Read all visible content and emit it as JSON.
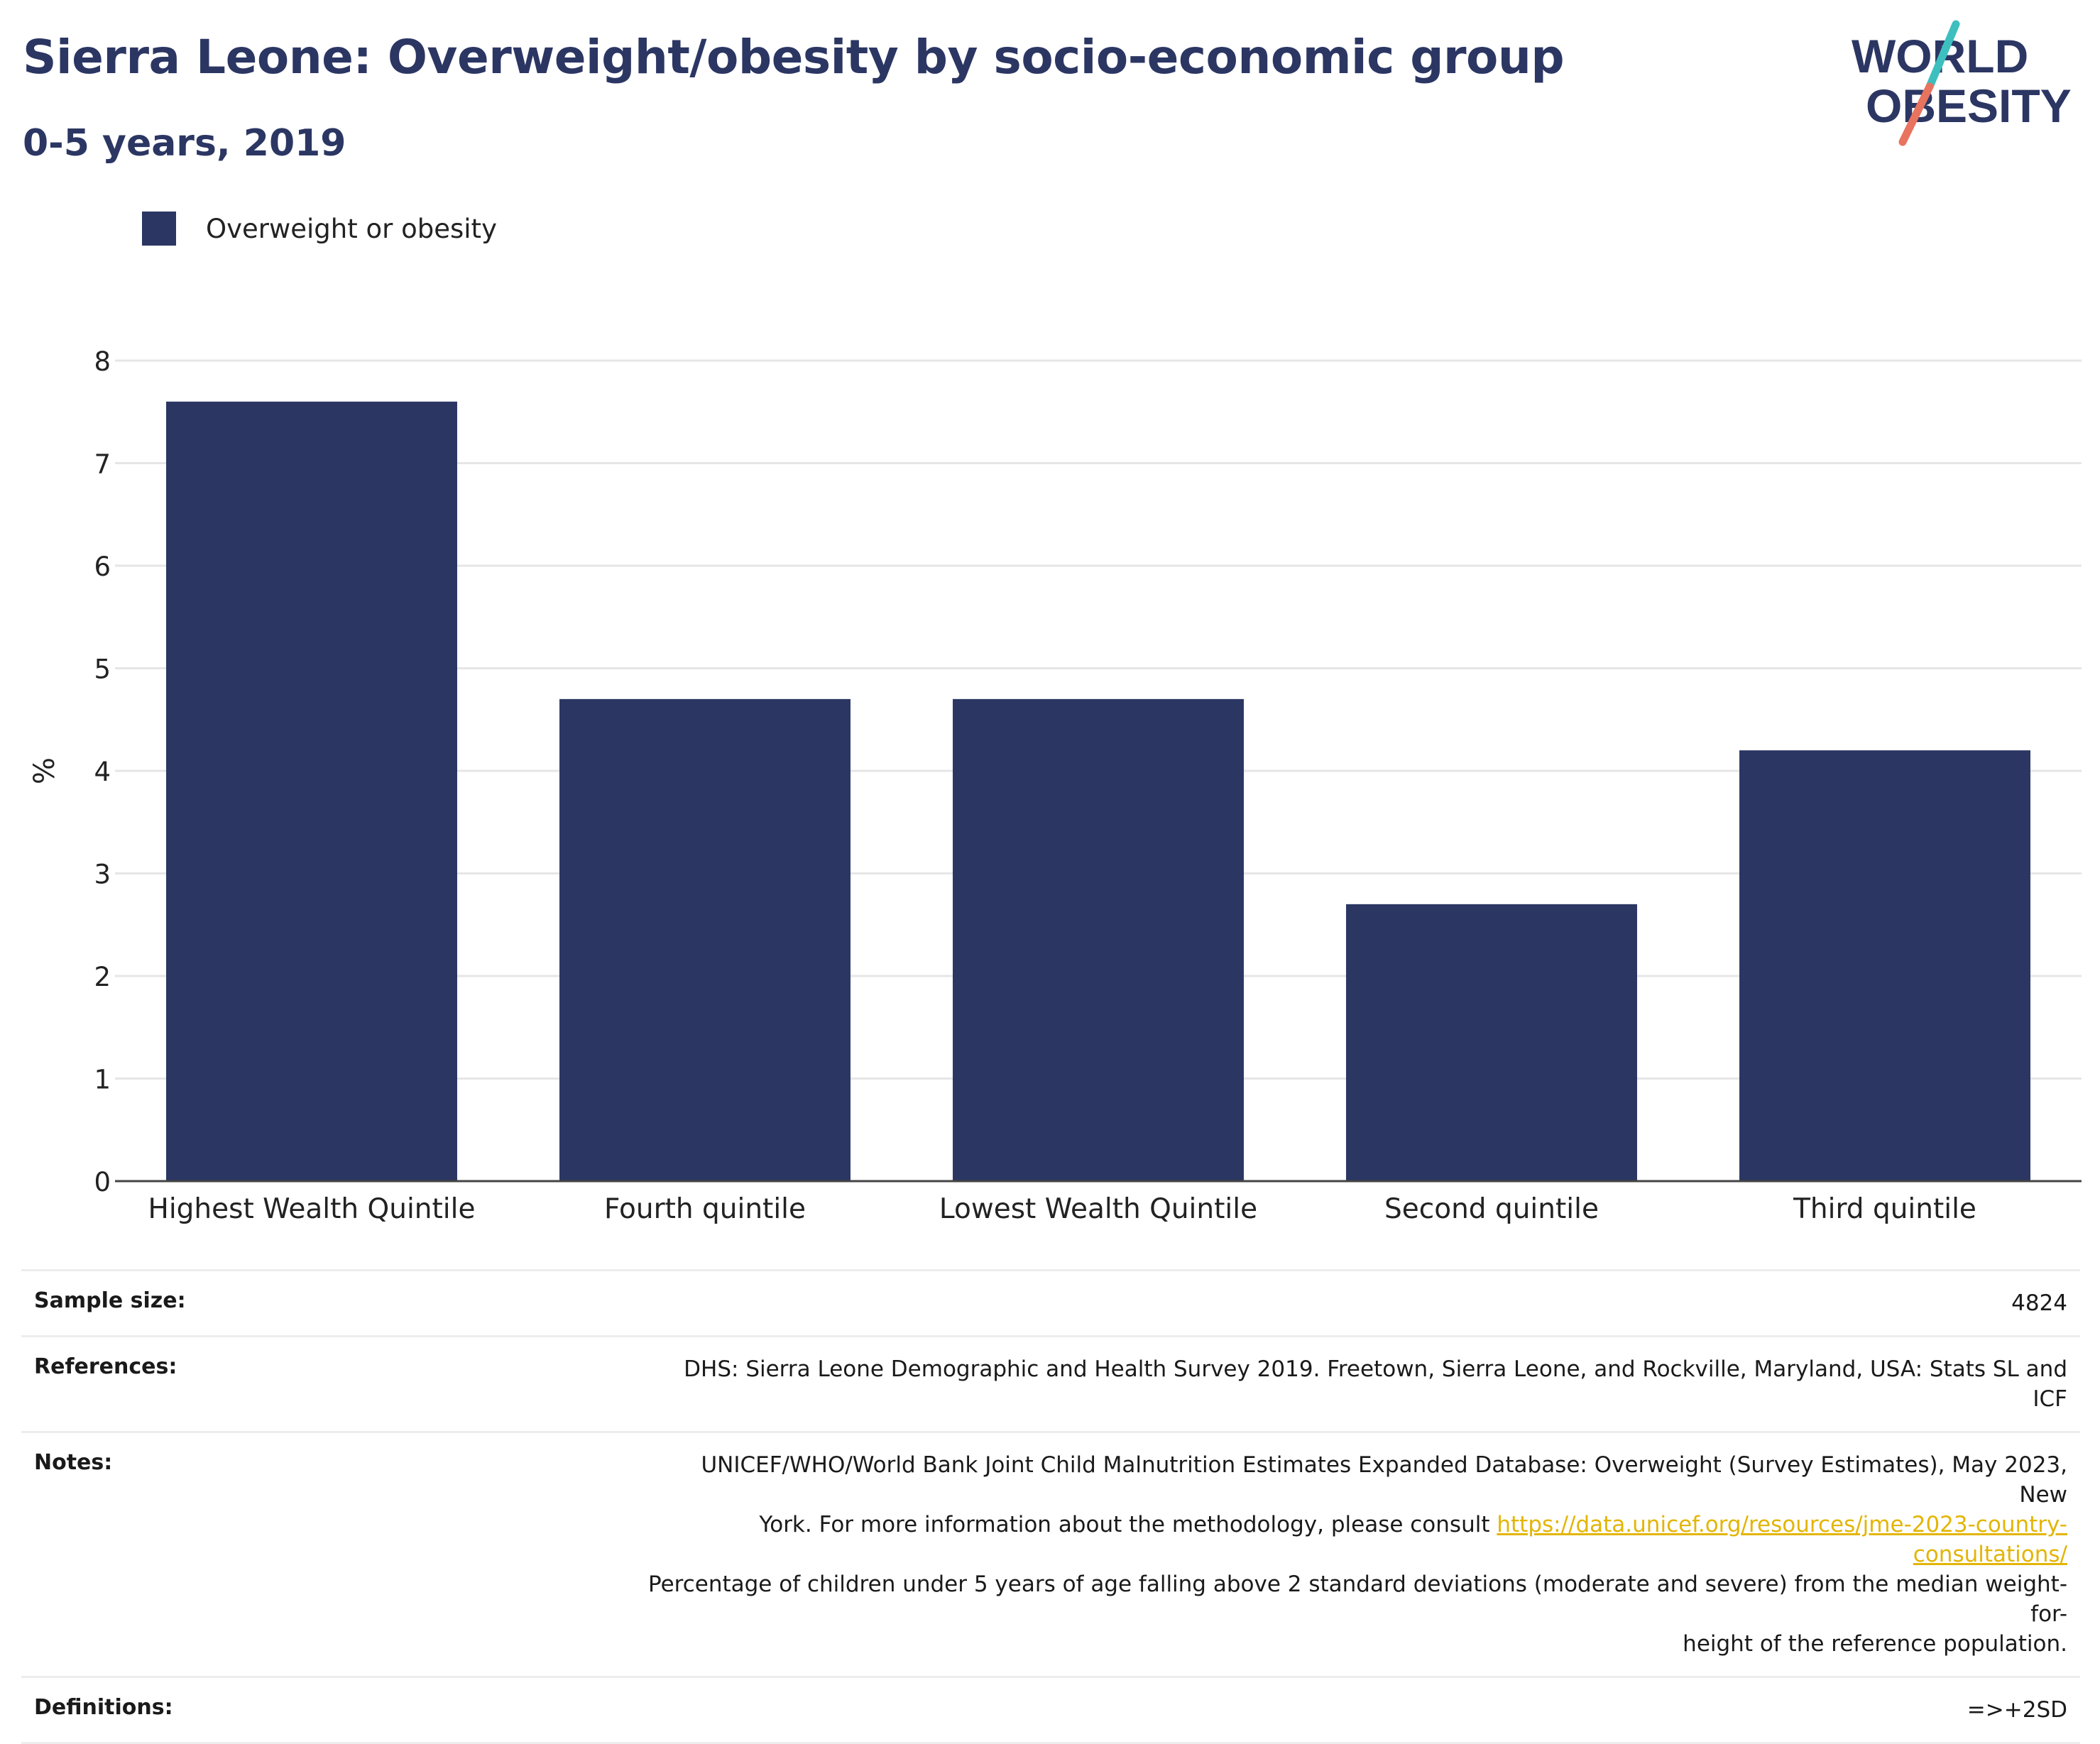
{
  "header": {
    "title": "Sierra Leone: Overweight/obesity by socio-economic group",
    "subtitle": "0-5 years, 2019"
  },
  "logo": {
    "line1": "WORLD",
    "line2": "OBESITY"
  },
  "legend": {
    "label": "Overweight or obesity"
  },
  "colors": {
    "bar": "#2b3663",
    "title": "#2b3663",
    "grid": "#e6e6e6",
    "link": "#e3b505",
    "logo_teal": "#3dbfbf",
    "logo_coral": "#e8735f"
  },
  "chart_data": {
    "type": "bar",
    "categories": [
      "Highest Wealth Quintile",
      "Fourth quintile",
      "Lowest Wealth Quintile",
      "Second quintile",
      "Third quintile"
    ],
    "series": [
      {
        "name": "Overweight or obesity",
        "values": [
          7.6,
          4.7,
          4.7,
          2.7,
          4.2
        ]
      }
    ],
    "title": "Sierra Leone: Overweight/obesity by socio-economic group",
    "subtitle": "0-5 years, 2019",
    "xlabel": "",
    "ylabel": "%",
    "ylim": [
      0,
      8
    ],
    "yticks": [
      0,
      1,
      2,
      3,
      4,
      5,
      6,
      7,
      8
    ],
    "grid": true,
    "legend_position": "top-left"
  },
  "info": {
    "sample_size_label": "Sample size:",
    "sample_size_value": "4824",
    "references_label": "References:",
    "references_value": "DHS: Sierra Leone Demographic and Health Survey 2019. Freetown, Sierra Leone, and Rockville, Maryland, USA: Stats SL and ICF",
    "notes_label": "Notes:",
    "notes_line1": "UNICEF/WHO/World Bank Joint Child Malnutrition Estimates Expanded Database: Overweight (Survey Estimates), May 2023, New",
    "notes_line2_prefix": "York. For more information about the methodology, please consult ",
    "notes_link": "https://data.unicef.org/resources/jme-2023-country-consultations/",
    "notes_line3": "Percentage of children under 5 years of age falling above 2 standard deviations (moderate and severe) from the median weight-for-",
    "notes_line4": "height of the reference population.",
    "definitions_label": "Definitions:",
    "definitions_value": "=>+2SD"
  }
}
